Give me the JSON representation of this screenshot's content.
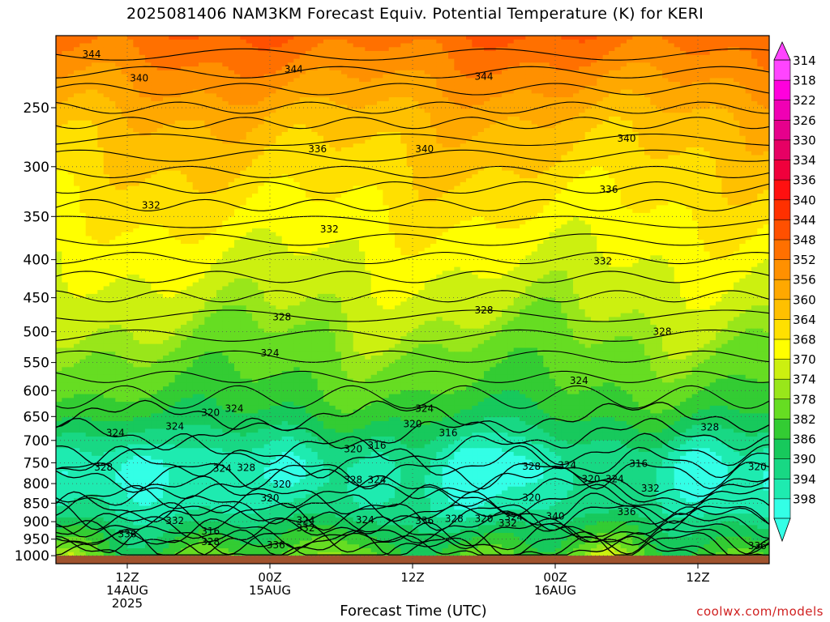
{
  "title": "2025081406 NAM3KM Forecast Equiv. Potential Temperature (K) for KERI",
  "credit": "coolwx.com/models",
  "chart_data": {
    "type": "heatmap",
    "title": "2025081406 NAM3KM Forecast Equiv. Potential Temperature (K) for KERI",
    "xlabel": "Forecast Time (UTC)",
    "ylabel": "",
    "y_scale": "log-pressure",
    "y_ticks": [
      250,
      300,
      350,
      400,
      450,
      500,
      550,
      600,
      650,
      700,
      750,
      800,
      850,
      900,
      950,
      1000
    ],
    "y_range_hpa": [
      200,
      1025
    ],
    "x_range_hours": [
      0,
      60
    ],
    "x_ticks": [
      {
        "hour": 6,
        "lines": [
          "12Z",
          "14AUG",
          "2025"
        ]
      },
      {
        "hour": 18,
        "lines": [
          "00Z",
          "15AUG"
        ]
      },
      {
        "hour": 30,
        "lines": [
          "12Z"
        ]
      },
      {
        "hour": 42,
        "lines": [
          "00Z",
          "16AUG"
        ]
      },
      {
        "hour": 54,
        "lines": [
          "12Z"
        ]
      }
    ],
    "grid": true,
    "colorbar": {
      "placement": "right",
      "levels": [
        314,
        318,
        322,
        326,
        330,
        334,
        336,
        340,
        344,
        348,
        352,
        356,
        360,
        364,
        368,
        370,
        374,
        378,
        382,
        386,
        390,
        394,
        398
      ],
      "colors": [
        "#33ffe6",
        "#1eebb0",
        "#18d884",
        "#17c95c",
        "#33cc33",
        "#66dd22",
        "#99e61a",
        "#ccf010",
        "#ffff00",
        "#ffe000",
        "#ffc000",
        "#ffa800",
        "#ff9000",
        "#ff7000",
        "#ff5000",
        "#ff3000",
        "#ff1010",
        "#f0003c",
        "#e60064",
        "#e6008c",
        "#f000b4",
        "#ff00dd",
        "#ff44ff"
      ]
    },
    "contour_labels": [
      {
        "t": 3.0,
        "p": 212,
        "value": "344"
      },
      {
        "t": 7.0,
        "p": 228,
        "value": "340"
      },
      {
        "t": 20.0,
        "p": 222,
        "value": "344"
      },
      {
        "t": 36.0,
        "p": 227,
        "value": "344"
      },
      {
        "t": 48.0,
        "p": 275,
        "value": "340"
      },
      {
        "t": 22.0,
        "p": 284,
        "value": "336"
      },
      {
        "t": 31.0,
        "p": 284,
        "value": "340"
      },
      {
        "t": 46.5,
        "p": 322,
        "value": "336"
      },
      {
        "t": 8.0,
        "p": 338,
        "value": "332"
      },
      {
        "t": 23.0,
        "p": 364,
        "value": "332"
      },
      {
        "t": 46.0,
        "p": 402,
        "value": "332"
      },
      {
        "t": 19.0,
        "p": 478,
        "value": "328"
      },
      {
        "t": 36.0,
        "p": 468,
        "value": "328"
      },
      {
        "t": 51.0,
        "p": 500,
        "value": "328"
      },
      {
        "t": 18.0,
        "p": 534,
        "value": "324"
      },
      {
        "t": 44.0,
        "p": 582,
        "value": "324"
      },
      {
        "t": 5.0,
        "p": 684,
        "value": "324"
      },
      {
        "t": 15.0,
        "p": 634,
        "value": "324"
      },
      {
        "t": 13.0,
        "p": 642,
        "value": "320"
      },
      {
        "t": 10.0,
        "p": 670,
        "value": "324"
      },
      {
        "t": 31.0,
        "p": 634,
        "value": "324"
      },
      {
        "t": 30.0,
        "p": 665,
        "value": "320"
      },
      {
        "t": 33.0,
        "p": 684,
        "value": "316"
      },
      {
        "t": 27.0,
        "p": 711,
        "value": "316"
      },
      {
        "t": 25.0,
        "p": 719,
        "value": "320"
      },
      {
        "t": 55.0,
        "p": 672,
        "value": "328"
      },
      {
        "t": 4.0,
        "p": 761,
        "value": "328"
      },
      {
        "t": 14.0,
        "p": 764,
        "value": "324"
      },
      {
        "t": 16.0,
        "p": 762,
        "value": "328"
      },
      {
        "t": 19.0,
        "p": 802,
        "value": "320"
      },
      {
        "t": 18.0,
        "p": 837,
        "value": "320"
      },
      {
        "t": 25.0,
        "p": 791,
        "value": "328"
      },
      {
        "t": 27.0,
        "p": 791,
        "value": "324"
      },
      {
        "t": 40.0,
        "p": 759,
        "value": "328"
      },
      {
        "t": 43.0,
        "p": 756,
        "value": "324"
      },
      {
        "t": 45.0,
        "p": 789,
        "value": "320"
      },
      {
        "t": 47.0,
        "p": 789,
        "value": "324"
      },
      {
        "t": 49.0,
        "p": 752,
        "value": "316"
      },
      {
        "t": 50.0,
        "p": 812,
        "value": "332"
      },
      {
        "t": 59.0,
        "p": 760,
        "value": "320"
      },
      {
        "t": 40.0,
        "p": 836,
        "value": "320"
      },
      {
        "t": 10.0,
        "p": 897,
        "value": "332"
      },
      {
        "t": 21.0,
        "p": 896,
        "value": "324"
      },
      {
        "t": 21.0,
        "p": 918,
        "value": "332"
      },
      {
        "t": 26.0,
        "p": 895,
        "value": "324"
      },
      {
        "t": 31.0,
        "p": 898,
        "value": "336"
      },
      {
        "t": 33.5,
        "p": 892,
        "value": "328"
      },
      {
        "t": 36.0,
        "p": 892,
        "value": "320"
      },
      {
        "t": 38.0,
        "p": 904,
        "value": "332"
      },
      {
        "t": 38.5,
        "p": 887,
        "value": "324"
      },
      {
        "t": 42.0,
        "p": 885,
        "value": "340"
      },
      {
        "t": 48.0,
        "p": 873,
        "value": "336"
      },
      {
        "t": 6.0,
        "p": 935,
        "value": "336"
      },
      {
        "t": 13.0,
        "p": 927,
        "value": "316"
      },
      {
        "t": 13.0,
        "p": 958,
        "value": "328"
      },
      {
        "t": 18.5,
        "p": 967,
        "value": "336"
      },
      {
        "t": 59.0,
        "p": 970,
        "value": "336"
      }
    ]
  }
}
